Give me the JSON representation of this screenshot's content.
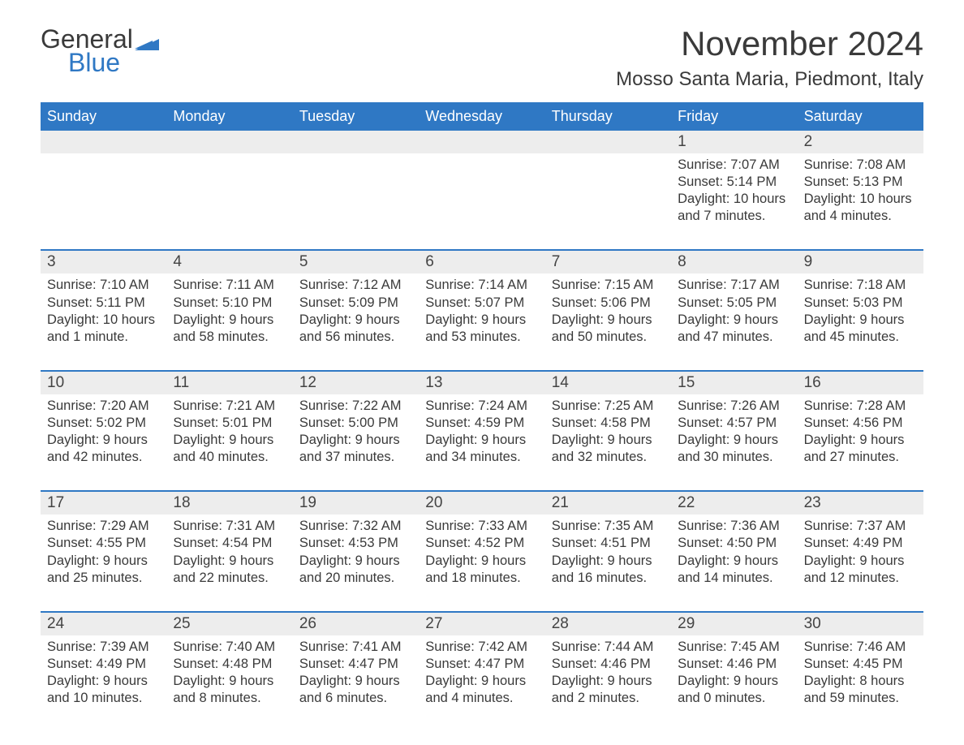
{
  "logo": {
    "word1": "General",
    "word2": "Blue",
    "flag_color": "#2f78c4"
  },
  "title": "November 2024",
  "location": "Mosso Santa Maria, Piedmont, Italy",
  "colors": {
    "header_bg": "#2f78c4",
    "header_text": "#ffffff",
    "band_bg": "#ededed",
    "body_text": "#3a3a3a",
    "rule": "#2f78c4"
  },
  "day_headers": [
    "Sunday",
    "Monday",
    "Tuesday",
    "Wednesday",
    "Thursday",
    "Friday",
    "Saturday"
  ],
  "weeks": [
    [
      null,
      null,
      null,
      null,
      null,
      {
        "n": "1",
        "sunrise": "Sunrise: 7:07 AM",
        "sunset": "Sunset: 5:14 PM",
        "day1": "Daylight: 10 hours",
        "day2": "and 7 minutes."
      },
      {
        "n": "2",
        "sunrise": "Sunrise: 7:08 AM",
        "sunset": "Sunset: 5:13 PM",
        "day1": "Daylight: 10 hours",
        "day2": "and 4 minutes."
      }
    ],
    [
      {
        "n": "3",
        "sunrise": "Sunrise: 7:10 AM",
        "sunset": "Sunset: 5:11 PM",
        "day1": "Daylight: 10 hours",
        "day2": "and 1 minute."
      },
      {
        "n": "4",
        "sunrise": "Sunrise: 7:11 AM",
        "sunset": "Sunset: 5:10 PM",
        "day1": "Daylight: 9 hours",
        "day2": "and 58 minutes."
      },
      {
        "n": "5",
        "sunrise": "Sunrise: 7:12 AM",
        "sunset": "Sunset: 5:09 PM",
        "day1": "Daylight: 9 hours",
        "day2": "and 56 minutes."
      },
      {
        "n": "6",
        "sunrise": "Sunrise: 7:14 AM",
        "sunset": "Sunset: 5:07 PM",
        "day1": "Daylight: 9 hours",
        "day2": "and 53 minutes."
      },
      {
        "n": "7",
        "sunrise": "Sunrise: 7:15 AM",
        "sunset": "Sunset: 5:06 PM",
        "day1": "Daylight: 9 hours",
        "day2": "and 50 minutes."
      },
      {
        "n": "8",
        "sunrise": "Sunrise: 7:17 AM",
        "sunset": "Sunset: 5:05 PM",
        "day1": "Daylight: 9 hours",
        "day2": "and 47 minutes."
      },
      {
        "n": "9",
        "sunrise": "Sunrise: 7:18 AM",
        "sunset": "Sunset: 5:03 PM",
        "day1": "Daylight: 9 hours",
        "day2": "and 45 minutes."
      }
    ],
    [
      {
        "n": "10",
        "sunrise": "Sunrise: 7:20 AM",
        "sunset": "Sunset: 5:02 PM",
        "day1": "Daylight: 9 hours",
        "day2": "and 42 minutes."
      },
      {
        "n": "11",
        "sunrise": "Sunrise: 7:21 AM",
        "sunset": "Sunset: 5:01 PM",
        "day1": "Daylight: 9 hours",
        "day2": "and 40 minutes."
      },
      {
        "n": "12",
        "sunrise": "Sunrise: 7:22 AM",
        "sunset": "Sunset: 5:00 PM",
        "day1": "Daylight: 9 hours",
        "day2": "and 37 minutes."
      },
      {
        "n": "13",
        "sunrise": "Sunrise: 7:24 AM",
        "sunset": "Sunset: 4:59 PM",
        "day1": "Daylight: 9 hours",
        "day2": "and 34 minutes."
      },
      {
        "n": "14",
        "sunrise": "Sunrise: 7:25 AM",
        "sunset": "Sunset: 4:58 PM",
        "day1": "Daylight: 9 hours",
        "day2": "and 32 minutes."
      },
      {
        "n": "15",
        "sunrise": "Sunrise: 7:26 AM",
        "sunset": "Sunset: 4:57 PM",
        "day1": "Daylight: 9 hours",
        "day2": "and 30 minutes."
      },
      {
        "n": "16",
        "sunrise": "Sunrise: 7:28 AM",
        "sunset": "Sunset: 4:56 PM",
        "day1": "Daylight: 9 hours",
        "day2": "and 27 minutes."
      }
    ],
    [
      {
        "n": "17",
        "sunrise": "Sunrise: 7:29 AM",
        "sunset": "Sunset: 4:55 PM",
        "day1": "Daylight: 9 hours",
        "day2": "and 25 minutes."
      },
      {
        "n": "18",
        "sunrise": "Sunrise: 7:31 AM",
        "sunset": "Sunset: 4:54 PM",
        "day1": "Daylight: 9 hours",
        "day2": "and 22 minutes."
      },
      {
        "n": "19",
        "sunrise": "Sunrise: 7:32 AM",
        "sunset": "Sunset: 4:53 PM",
        "day1": "Daylight: 9 hours",
        "day2": "and 20 minutes."
      },
      {
        "n": "20",
        "sunrise": "Sunrise: 7:33 AM",
        "sunset": "Sunset: 4:52 PM",
        "day1": "Daylight: 9 hours",
        "day2": "and 18 minutes."
      },
      {
        "n": "21",
        "sunrise": "Sunrise: 7:35 AM",
        "sunset": "Sunset: 4:51 PM",
        "day1": "Daylight: 9 hours",
        "day2": "and 16 minutes."
      },
      {
        "n": "22",
        "sunrise": "Sunrise: 7:36 AM",
        "sunset": "Sunset: 4:50 PM",
        "day1": "Daylight: 9 hours",
        "day2": "and 14 minutes."
      },
      {
        "n": "23",
        "sunrise": "Sunrise: 7:37 AM",
        "sunset": "Sunset: 4:49 PM",
        "day1": "Daylight: 9 hours",
        "day2": "and 12 minutes."
      }
    ],
    [
      {
        "n": "24",
        "sunrise": "Sunrise: 7:39 AM",
        "sunset": "Sunset: 4:49 PM",
        "day1": "Daylight: 9 hours",
        "day2": "and 10 minutes."
      },
      {
        "n": "25",
        "sunrise": "Sunrise: 7:40 AM",
        "sunset": "Sunset: 4:48 PM",
        "day1": "Daylight: 9 hours",
        "day2": "and 8 minutes."
      },
      {
        "n": "26",
        "sunrise": "Sunrise: 7:41 AM",
        "sunset": "Sunset: 4:47 PM",
        "day1": "Daylight: 9 hours",
        "day2": "and 6 minutes."
      },
      {
        "n": "27",
        "sunrise": "Sunrise: 7:42 AM",
        "sunset": "Sunset: 4:47 PM",
        "day1": "Daylight: 9 hours",
        "day2": "and 4 minutes."
      },
      {
        "n": "28",
        "sunrise": "Sunrise: 7:44 AM",
        "sunset": "Sunset: 4:46 PM",
        "day1": "Daylight: 9 hours",
        "day2": "and 2 minutes."
      },
      {
        "n": "29",
        "sunrise": "Sunrise: 7:45 AM",
        "sunset": "Sunset: 4:46 PM",
        "day1": "Daylight: 9 hours",
        "day2": "and 0 minutes."
      },
      {
        "n": "30",
        "sunrise": "Sunrise: 7:46 AM",
        "sunset": "Sunset: 4:45 PM",
        "day1": "Daylight: 8 hours",
        "day2": "and 59 minutes."
      }
    ]
  ]
}
